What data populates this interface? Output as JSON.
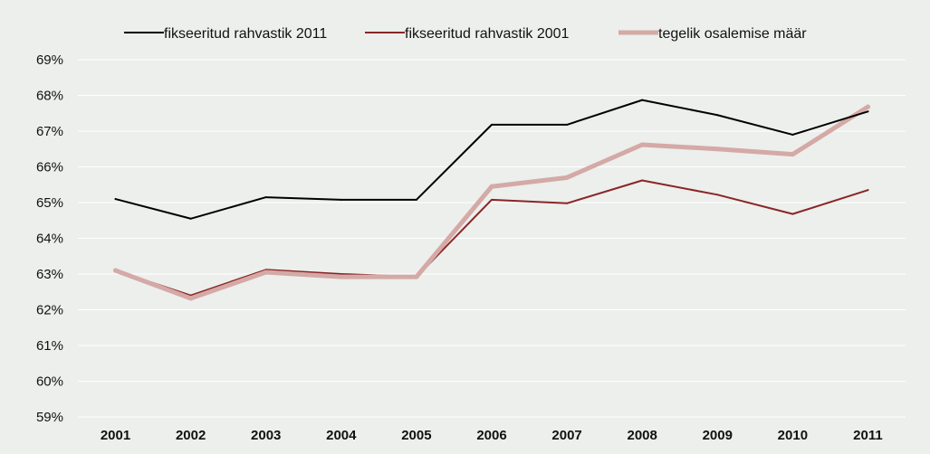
{
  "chart_data": {
    "type": "line",
    "x": [
      "2001",
      "2002",
      "2003",
      "2004",
      "2005",
      "2006",
      "2007",
      "2008",
      "2009",
      "2010",
      "2011"
    ],
    "series": [
      {
        "name": "fikseeritud rahvastik 2011",
        "color": "#000000",
        "values": [
          65.1,
          64.55,
          65.15,
          65.08,
          65.08,
          67.18,
          67.18,
          67.87,
          67.45,
          66.9,
          67.55
        ]
      },
      {
        "name": "fikseeritud rahvastik 2001",
        "color": "#8b2527",
        "values": [
          63.1,
          62.4,
          63.12,
          63.0,
          62.92,
          65.08,
          64.98,
          65.62,
          65.22,
          64.68,
          65.35
        ]
      },
      {
        "name": "tegelik osalemise määr",
        "color": "#d4a9a6",
        "values": [
          63.1,
          62.32,
          63.05,
          62.92,
          62.92,
          65.45,
          65.7,
          66.62,
          66.5,
          66.35,
          67.68
        ]
      }
    ],
    "y_ticks": [
      "59%",
      "60%",
      "61%",
      "62%",
      "63%",
      "64%",
      "65%",
      "66%",
      "67%",
      "68%",
      "69%"
    ],
    "ylim": [
      59,
      69
    ],
    "grid": true,
    "legend_position": "top-center"
  }
}
